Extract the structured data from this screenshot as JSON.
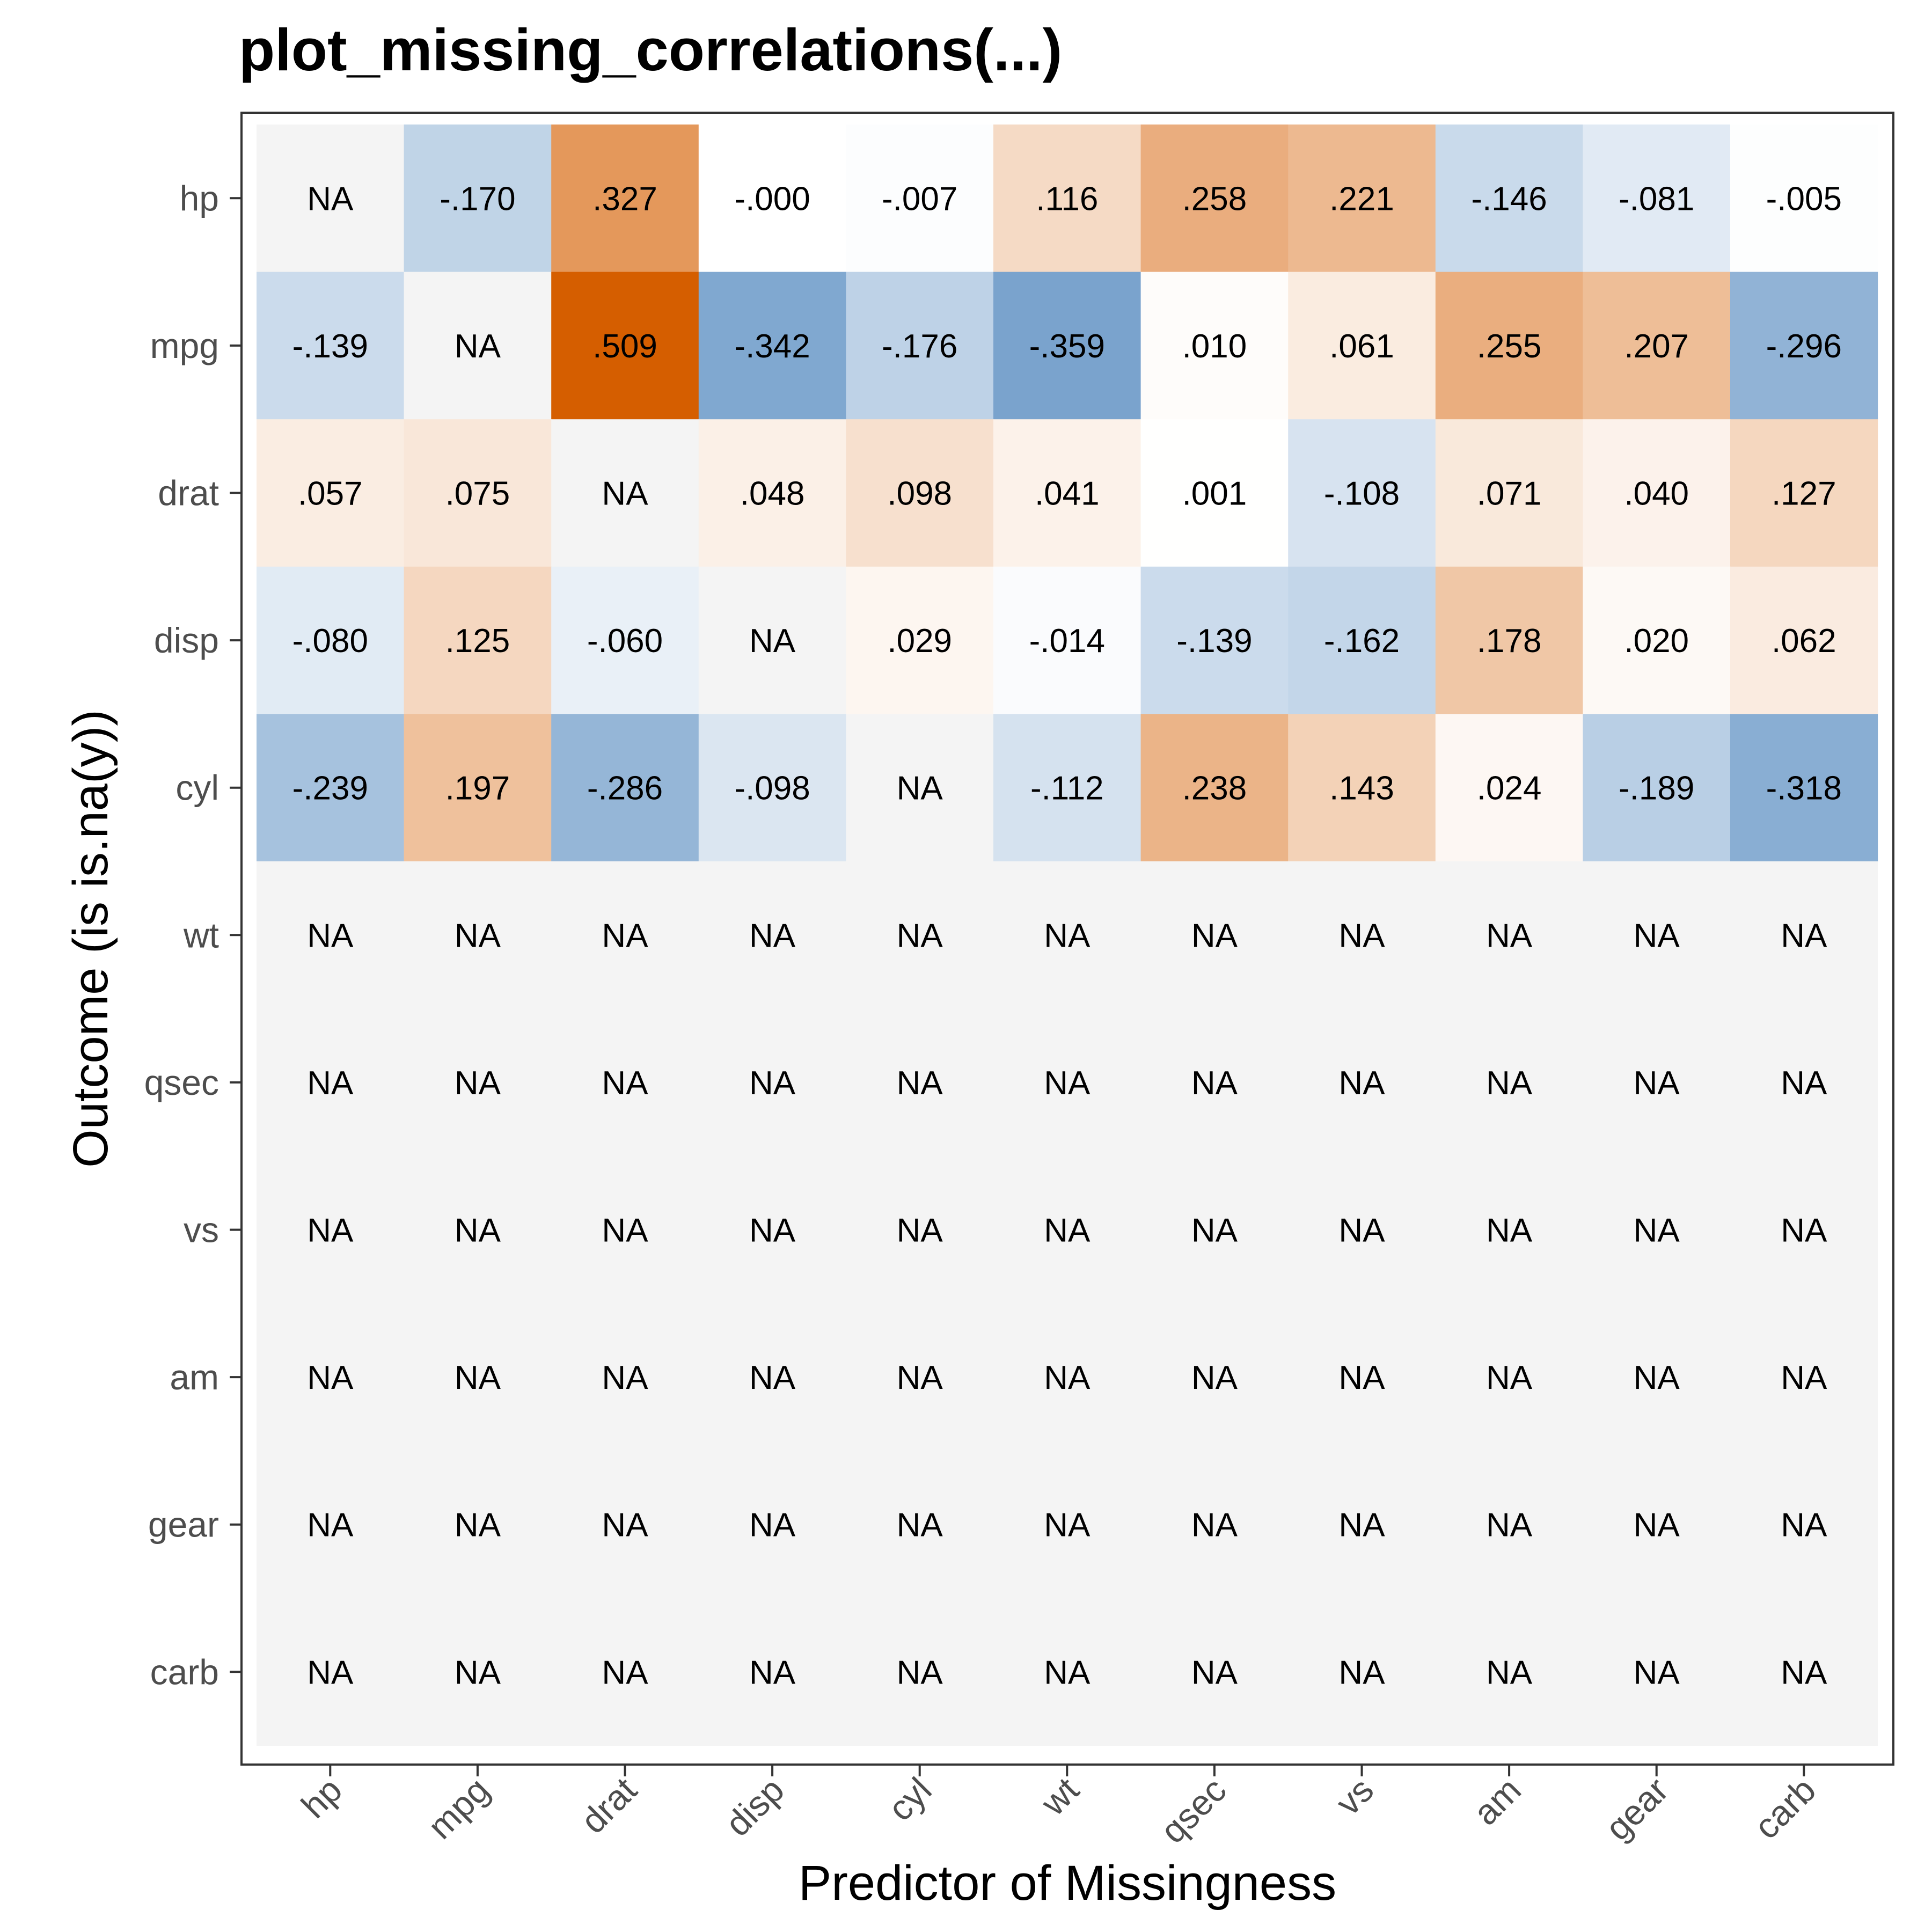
{
  "chart_data": {
    "type": "heatmap",
    "title": "plot_missing_correlations(...)",
    "xlabel": "Predictor of Missingness",
    "ylabel": "Outcome (is is.na(y))",
    "x_categories": [
      "hp",
      "mpg",
      "drat",
      "disp",
      "cyl",
      "wt",
      "qsec",
      "vs",
      "am",
      "gear",
      "carb"
    ],
    "y_categories": [
      "hp",
      "mpg",
      "drat",
      "disp",
      "cyl",
      "wt",
      "qsec",
      "vs",
      "am",
      "gear",
      "carb"
    ],
    "values": [
      [
        null,
        -0.17,
        0.327,
        -0.0,
        -0.007,
        0.116,
        0.258,
        0.221,
        -0.146,
        -0.081,
        -0.005
      ],
      [
        -0.139,
        null,
        0.509,
        -0.342,
        -0.176,
        -0.359,
        0.01,
        0.061,
        0.255,
        0.207,
        -0.296
      ],
      [
        0.057,
        0.075,
        null,
        0.048,
        0.098,
        0.041,
        0.001,
        -0.108,
        0.071,
        0.04,
        0.127
      ],
      [
        -0.08,
        0.125,
        -0.06,
        null,
        0.029,
        -0.014,
        -0.139,
        -0.162,
        0.178,
        0.02,
        0.062
      ],
      [
        -0.239,
        0.197,
        -0.286,
        -0.098,
        null,
        -0.112,
        0.238,
        0.143,
        0.024,
        -0.189,
        -0.318
      ],
      [
        null,
        null,
        null,
        null,
        null,
        null,
        null,
        null,
        null,
        null,
        null
      ],
      [
        null,
        null,
        null,
        null,
        null,
        null,
        null,
        null,
        null,
        null,
        null
      ],
      [
        null,
        null,
        null,
        null,
        null,
        null,
        null,
        null,
        null,
        null,
        null
      ],
      [
        null,
        null,
        null,
        null,
        null,
        null,
        null,
        null,
        null,
        null,
        null
      ],
      [
        null,
        null,
        null,
        null,
        null,
        null,
        null,
        null,
        null,
        null,
        null
      ],
      [
        null,
        null,
        null,
        null,
        null,
        null,
        null,
        null,
        null,
        null,
        null
      ]
    ],
    "labels": [
      [
        "NA",
        "-.170",
        ".327",
        "-.000",
        "-.007",
        ".116",
        ".258",
        ".221",
        "-.146",
        "-.081",
        "-.005"
      ],
      [
        "-.139",
        "NA",
        ".509",
        "-.342",
        "-.176",
        "-.359",
        ".010",
        ".061",
        ".255",
        ".207",
        "-.296"
      ],
      [
        ".057",
        ".075",
        "NA",
        ".048",
        ".098",
        ".041",
        ".001",
        "-.108",
        ".071",
        ".040",
        ".127"
      ],
      [
        "-.080",
        ".125",
        "-.060",
        "NA",
        ".029",
        "-.014",
        "-.139",
        "-.162",
        ".178",
        ".020",
        ".062"
      ],
      [
        "-.239",
        ".197",
        "-.286",
        "-.098",
        "NA",
        "-.112",
        ".238",
        ".143",
        ".024",
        "-.189",
        "-.318"
      ],
      [
        "NA",
        "NA",
        "NA",
        "NA",
        "NA",
        "NA",
        "NA",
        "NA",
        "NA",
        "NA",
        "NA"
      ],
      [
        "NA",
        "NA",
        "NA",
        "NA",
        "NA",
        "NA",
        "NA",
        "NA",
        "NA",
        "NA",
        "NA"
      ],
      [
        "NA",
        "NA",
        "NA",
        "NA",
        "NA",
        "NA",
        "NA",
        "NA",
        "NA",
        "NA",
        "NA"
      ],
      [
        "NA",
        "NA",
        "NA",
        "NA",
        "NA",
        "NA",
        "NA",
        "NA",
        "NA",
        "NA",
        "NA"
      ],
      [
        "NA",
        "NA",
        "NA",
        "NA",
        "NA",
        "NA",
        "NA",
        "NA",
        "NA",
        "NA",
        "NA"
      ],
      [
        "NA",
        "NA",
        "NA",
        "NA",
        "NA",
        "NA",
        "NA",
        "NA",
        "NA",
        "NA",
        "NA"
      ]
    ],
    "color_scale": {
      "negative": "#2166ac",
      "positive": "#d55e00",
      "midpoint": "#ffffff",
      "na": "#f4f4f4",
      "max_abs": 0.509
    },
    "grid": false,
    "legend": "none"
  }
}
